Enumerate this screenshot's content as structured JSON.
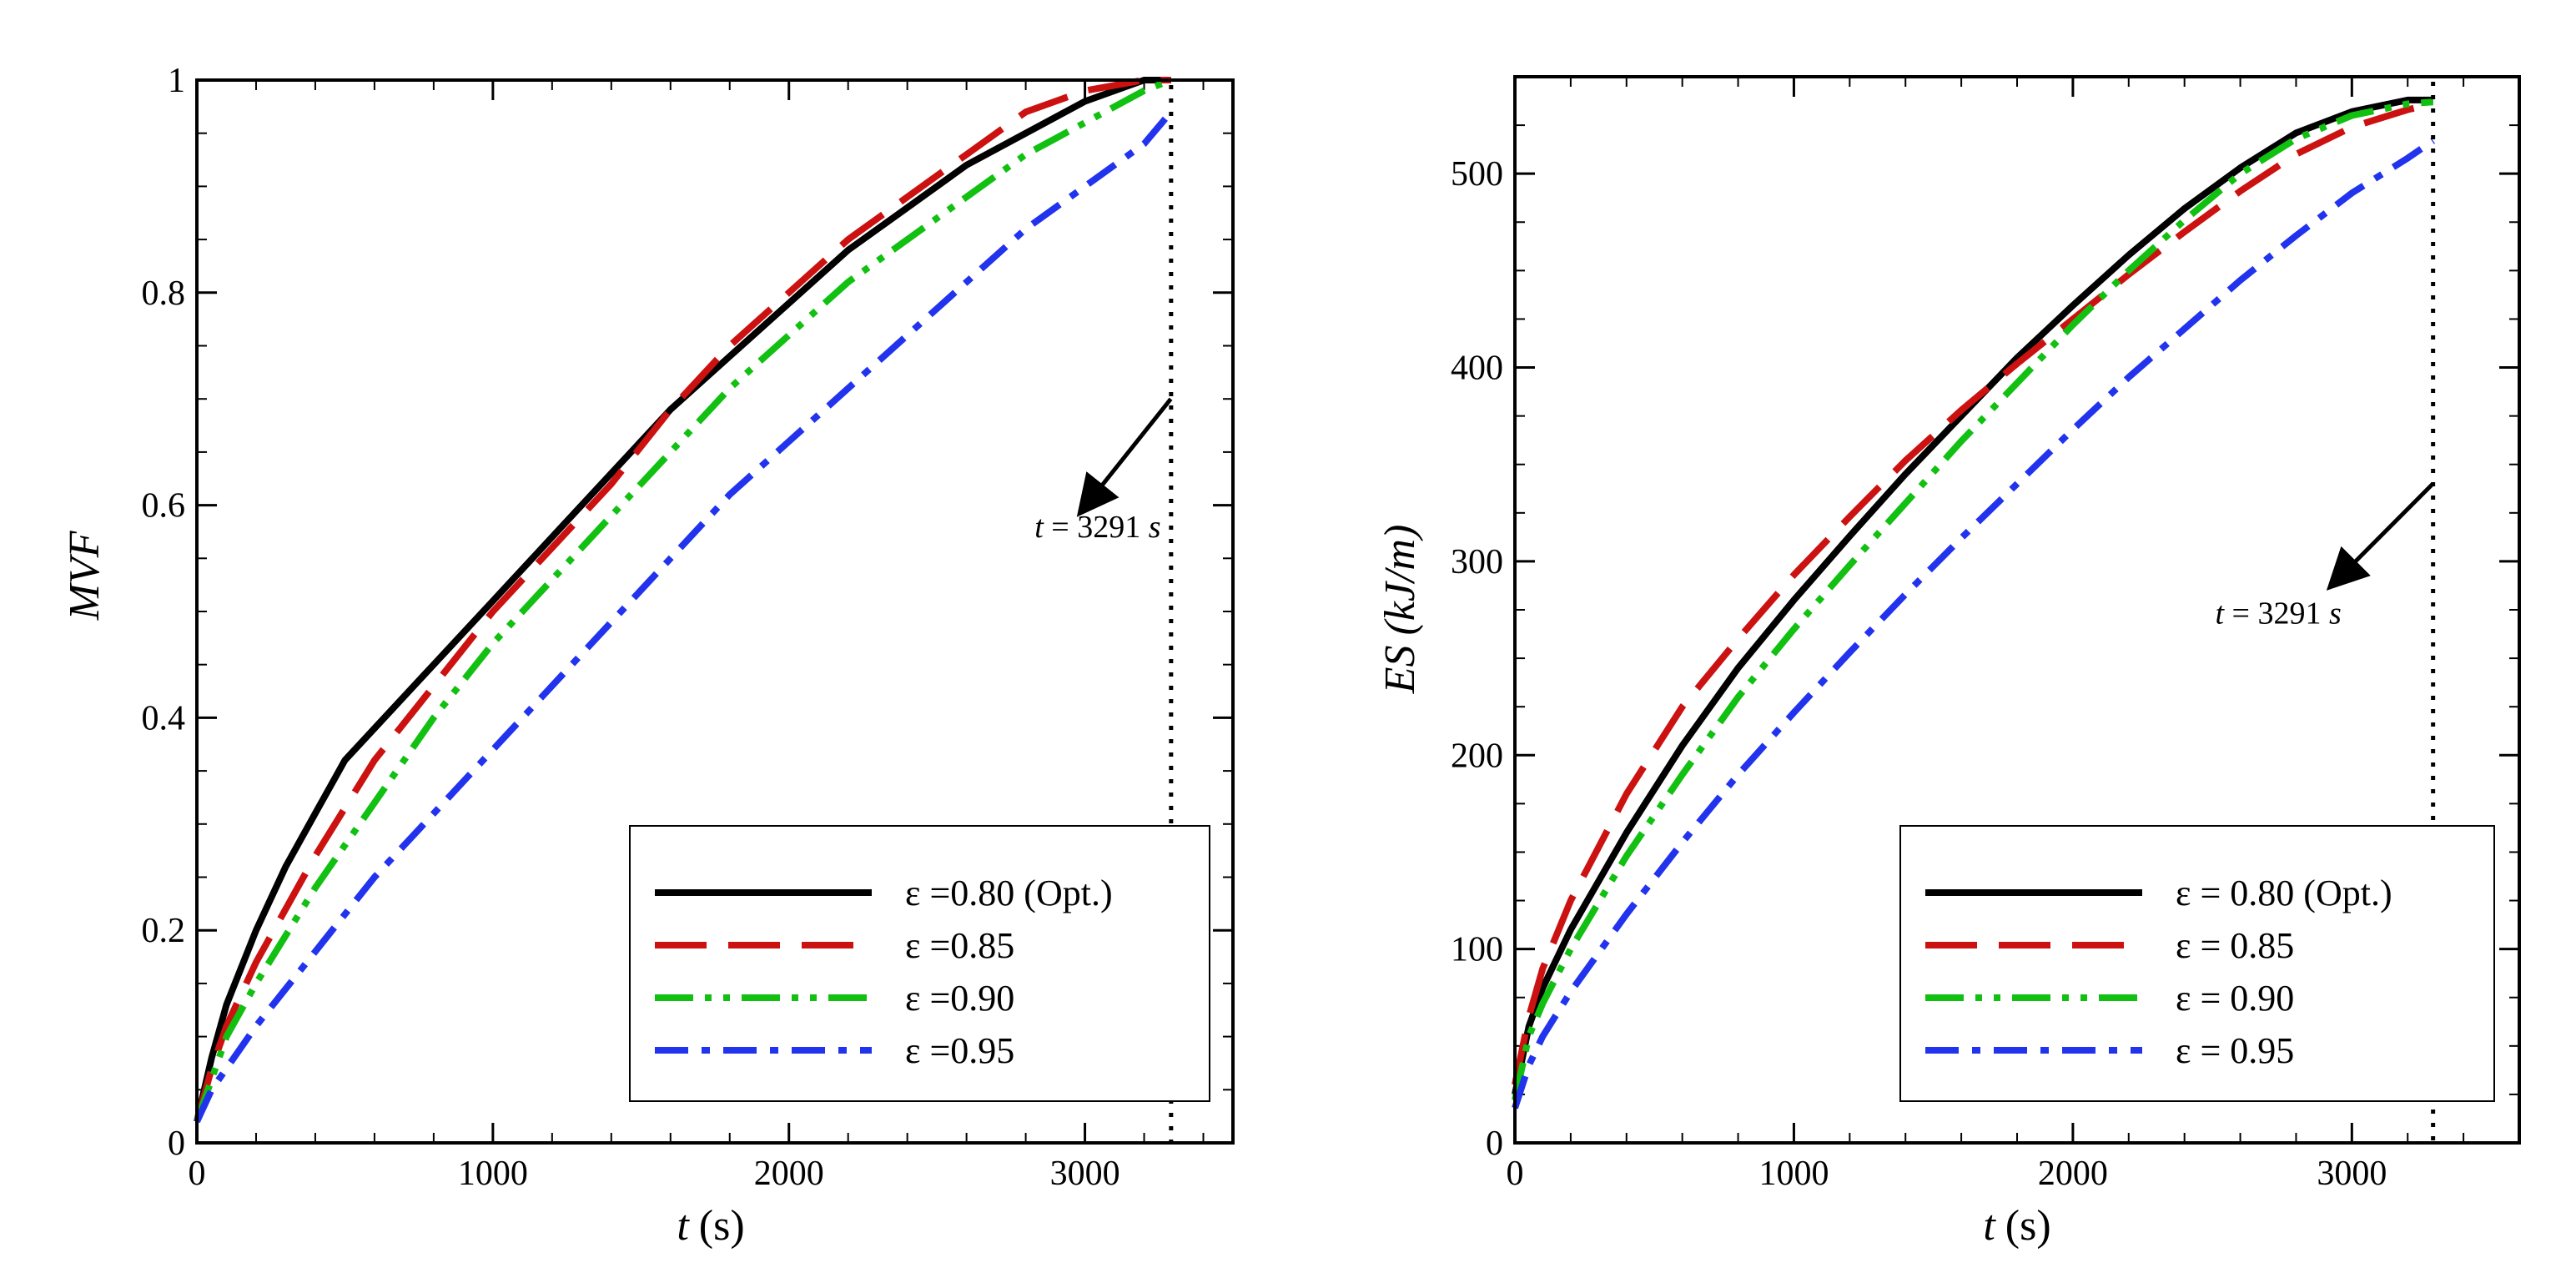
{
  "chart_data": [
    {
      "type": "line",
      "panel": "left",
      "xlabel_var": "t",
      "xlabel_unit": "(s)",
      "ylabel": "MVF",
      "xlim": [
        0,
        3500
      ],
      "ylim": [
        0,
        1
      ],
      "x_ticks": [
        0,
        1000,
        2000,
        3000
      ],
      "y_ticks": [
        0,
        0.2,
        0.4,
        0.6,
        0.8,
        1
      ],
      "y_tick_labels": [
        "0",
        "0.2",
        "0.4",
        "0.6",
        "0.8",
        "1"
      ],
      "vline": 3291,
      "annotation": {
        "var": "t",
        "eq": " = 3291 ",
        "unit": "s",
        "text_at": [
          2830,
          0.57
        ],
        "arrow_from": [
          3290,
          0.7
        ],
        "arrow_to": [
          2990,
          0.595
        ]
      },
      "series": [
        {
          "name": "ε =0.80 (Opt.)",
          "color": "#000000",
          "style": "solid",
          "x": [
            0,
            50,
            100,
            200,
            300,
            400,
            500,
            600,
            800,
            1000,
            1200,
            1400,
            1600,
            1800,
            2000,
            2200,
            2400,
            2600,
            2800,
            3000,
            3200,
            3291
          ],
          "y": [
            0.02,
            0.08,
            0.13,
            0.2,
            0.26,
            0.31,
            0.36,
            0.39,
            0.45,
            0.51,
            0.57,
            0.63,
            0.69,
            0.74,
            0.79,
            0.84,
            0.88,
            0.92,
            0.95,
            0.98,
            1.0,
            1.0
          ]
        },
        {
          "name": "ε =0.85",
          "color": "#cc1111",
          "style": "dash",
          "x": [
            0,
            50,
            100,
            200,
            400,
            600,
            800,
            1000,
            1200,
            1400,
            1600,
            1800,
            2000,
            2200,
            2400,
            2600,
            2800,
            3000,
            3200,
            3291
          ],
          "y": [
            0.02,
            0.07,
            0.11,
            0.17,
            0.27,
            0.36,
            0.43,
            0.5,
            0.56,
            0.62,
            0.69,
            0.75,
            0.8,
            0.85,
            0.89,
            0.93,
            0.97,
            0.99,
            1.0,
            1.0
          ]
        },
        {
          "name": "ε =0.90",
          "color": "#11c011",
          "style": "dashdotdot",
          "x": [
            0,
            50,
            100,
            200,
            400,
            600,
            800,
            1000,
            1200,
            1400,
            1600,
            1800,
            2000,
            2200,
            2400,
            2600,
            2800,
            3000,
            3200,
            3291
          ],
          "y": [
            0.02,
            0.06,
            0.1,
            0.15,
            0.24,
            0.32,
            0.4,
            0.47,
            0.53,
            0.59,
            0.65,
            0.71,
            0.76,
            0.81,
            0.85,
            0.89,
            0.93,
            0.96,
            0.99,
            1.0
          ]
        },
        {
          "name": "ε =0.95",
          "color": "#2233ee",
          "style": "dashdot",
          "x": [
            0,
            50,
            100,
            200,
            400,
            600,
            800,
            1000,
            1200,
            1400,
            1600,
            1800,
            2000,
            2200,
            2400,
            2600,
            2800,
            3000,
            3200,
            3291
          ],
          "y": [
            0.02,
            0.05,
            0.07,
            0.11,
            0.18,
            0.25,
            0.31,
            0.37,
            0.43,
            0.49,
            0.55,
            0.61,
            0.66,
            0.71,
            0.76,
            0.81,
            0.86,
            0.9,
            0.94,
            0.97
          ]
        }
      ]
    },
    {
      "type": "line",
      "panel": "right",
      "xlabel_var": "t",
      "xlabel_unit": "(s)",
      "ylabel_var": "ES",
      "ylabel_unit": "(kJ/m)",
      "xlim": [
        0,
        3600
      ],
      "ylim": [
        0,
        550
      ],
      "x_ticks": [
        0,
        1000,
        2000,
        3000
      ],
      "y_ticks": [
        0,
        100,
        200,
        300,
        400,
        500
      ],
      "y_tick_labels": [
        "0",
        "100",
        "200",
        "300",
        "400",
        "500"
      ],
      "vline": 3291,
      "annotation": {
        "var": "t",
        "eq": " = 3291 ",
        "unit": "s",
        "text_at": [
          2510,
          268
        ],
        "arrow_from": [
          3290,
          340
        ],
        "arrow_to": [
          2930,
          288
        ]
      },
      "series": [
        {
          "name": "ε = 0.80 (Opt.)",
          "color": "#000000",
          "style": "solid",
          "x": [
            0,
            50,
            100,
            200,
            400,
            600,
            800,
            1000,
            1200,
            1400,
            1600,
            1800,
            2000,
            2200,
            2400,
            2600,
            2800,
            3000,
            3200,
            3291
          ],
          "y": [
            25,
            60,
            80,
            110,
            160,
            205,
            245,
            280,
            313,
            345,
            375,
            405,
            432,
            458,
            482,
            503,
            521,
            532,
            538,
            538
          ]
        },
        {
          "name": "ε = 0.85",
          "color": "#cc1111",
          "style": "dash",
          "x": [
            0,
            50,
            100,
            200,
            400,
            600,
            800,
            1000,
            1200,
            1400,
            1600,
            1800,
            2000,
            2200,
            2400,
            2600,
            2800,
            3000,
            3200,
            3291
          ],
          "y": [
            30,
            65,
            90,
            125,
            180,
            225,
            260,
            293,
            323,
            352,
            378,
            402,
            425,
            448,
            470,
            491,
            510,
            524,
            533,
            536
          ]
        },
        {
          "name": "ε = 0.90",
          "color": "#11c011",
          "style": "dashdotdot",
          "x": [
            0,
            50,
            100,
            200,
            400,
            600,
            800,
            1000,
            1200,
            1400,
            1600,
            1800,
            2000,
            2200,
            2400,
            2600,
            2800,
            3000,
            3200,
            3291
          ],
          "y": [
            22,
            55,
            72,
            100,
            148,
            190,
            230,
            265,
            298,
            330,
            362,
            392,
            422,
            450,
            476,
            500,
            518,
            530,
            536,
            537
          ]
        },
        {
          "name": "ε = 0.95",
          "color": "#2233ee",
          "style": "dashdot",
          "x": [
            0,
            50,
            100,
            200,
            400,
            600,
            800,
            1000,
            1200,
            1400,
            1600,
            1800,
            2000,
            2200,
            2400,
            2600,
            2800,
            3000,
            3200,
            3291
          ],
          "y": [
            18,
            40,
            55,
            78,
            118,
            155,
            190,
            222,
            253,
            283,
            312,
            340,
            368,
            395,
            420,
            445,
            468,
            490,
            508,
            517
          ]
        }
      ]
    }
  ]
}
